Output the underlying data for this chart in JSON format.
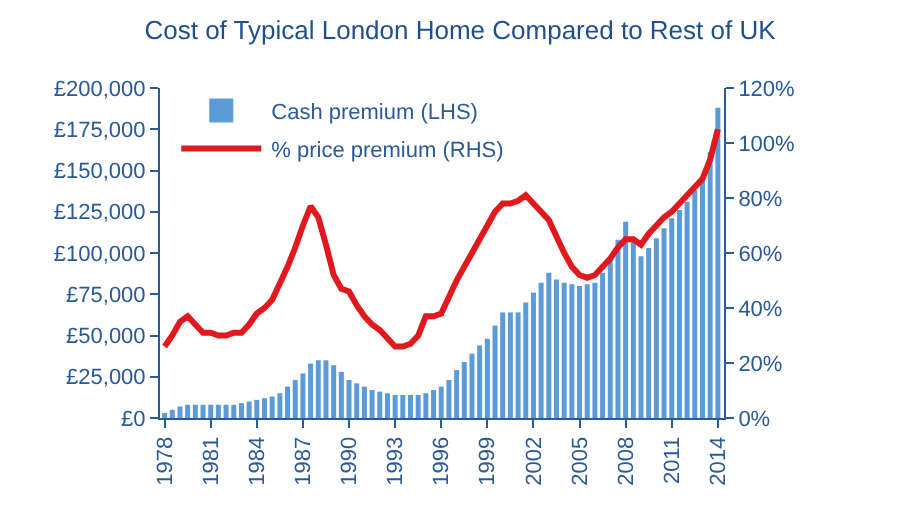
{
  "chart_data": {
    "type": "bar",
    "title": "Cost of Typical London Home Compared to Rest of UK",
    "x": [
      1978,
      1978.5,
      1979,
      1979.5,
      1980,
      1980.5,
      1981,
      1981.5,
      1982,
      1982.5,
      1983,
      1983.5,
      1984,
      1984.5,
      1985,
      1985.5,
      1986,
      1986.5,
      1987,
      1987.5,
      1988,
      1988.5,
      1989,
      1989.5,
      1990,
      1990.5,
      1991,
      1991.5,
      1992,
      1992.5,
      1993,
      1993.5,
      1994,
      1994.5,
      1995,
      1995.5,
      1996,
      1996.5,
      1997,
      1997.5,
      1998,
      1998.5,
      1999,
      1999.5,
      2000,
      2000.5,
      2001,
      2001.5,
      2002,
      2002.5,
      2003,
      2003.5,
      2004,
      2004.5,
      2005,
      2005.5,
      2006,
      2006.5,
      2007,
      2007.5,
      2008,
      2008.5,
      2009,
      2009.5,
      2010,
      2010.5,
      2011,
      2011.5,
      2012,
      2012.5,
      2013,
      2013.5,
      2014
    ],
    "series": [
      {
        "name": "Cash premium (LHS)",
        "color": "#5a9bd8",
        "values": [
          3000,
          5000,
          7000,
          8000,
          8000,
          8000,
          8000,
          8000,
          8000,
          8000,
          9000,
          10000,
          11000,
          12000,
          13000,
          15000,
          19000,
          23000,
          27000,
          33000,
          35000,
          35000,
          32000,
          28000,
          23000,
          21000,
          19000,
          17000,
          16000,
          15000,
          14000,
          14000,
          14000,
          14000,
          15000,
          17000,
          19000,
          23000,
          29000,
          34000,
          39000,
          44000,
          48000,
          56000,
          64000,
          64000,
          64000,
          70000,
          76000,
          82000,
          88000,
          84000,
          82000,
          81000,
          80000,
          81000,
          82000,
          88000,
          96000,
          108000,
          119000,
          108000,
          98000,
          103000,
          109000,
          115000,
          121000,
          126000,
          131000,
          138000,
          145000,
          161000,
          188000
        ]
      },
      {
        "name": "% price premium (RHS)",
        "type": "line",
        "axis": "y2",
        "color": "#e0191f",
        "values": [
          26,
          30,
          35,
          37,
          34,
          31,
          31,
          30,
          30,
          31,
          31,
          34,
          38,
          40,
          43,
          49,
          55,
          62,
          70,
          77,
          73,
          63,
          52,
          47,
          46,
          41,
          37,
          34,
          32,
          29,
          26,
          26,
          27,
          30,
          37,
          37,
          38,
          44,
          50,
          55,
          60,
          65,
          70,
          75,
          78,
          78,
          79,
          81,
          78,
          75,
          72,
          66,
          60,
          55,
          52,
          51,
          52,
          55,
          58,
          62,
          65,
          65,
          63,
          67,
          70,
          73,
          75,
          78,
          81,
          84,
          87,
          94,
          105
        ]
      }
    ],
    "xlim": [
      1977.7,
      2014.4
    ],
    "xticks": [
      1978,
      1981,
      1984,
      1987,
      1990,
      1993,
      1996,
      1999,
      2002,
      2005,
      2008,
      2011,
      2014
    ],
    "ylim": [
      0,
      200000
    ],
    "yticks": [
      {
        "value": 0,
        "label": "£0"
      },
      {
        "value": 25000,
        "label": "£25,000"
      },
      {
        "value": 50000,
        "label": "£50,000"
      },
      {
        "value": 75000,
        "label": "£75,000"
      },
      {
        "value": 100000,
        "label": "£100,000"
      },
      {
        "value": 125000,
        "label": "£125,000"
      },
      {
        "value": 150000,
        "label": "£150,000"
      },
      {
        "value": 175000,
        "label": "£175,000"
      },
      {
        "value": 200000,
        "label": "£200,000"
      }
    ],
    "y2lim": [
      0,
      120
    ],
    "y2ticks": [
      {
        "value": 0,
        "label": "0%"
      },
      {
        "value": 20,
        "label": "20%"
      },
      {
        "value": 40,
        "label": "40%"
      },
      {
        "value": 60,
        "label": "60%"
      },
      {
        "value": 80,
        "label": "80%"
      },
      {
        "value": 100,
        "label": "100%"
      },
      {
        "value": 120,
        "label": "120%"
      }
    ],
    "grid": false,
    "legend": "top left",
    "marker": "none",
    "line_style": "solid"
  }
}
